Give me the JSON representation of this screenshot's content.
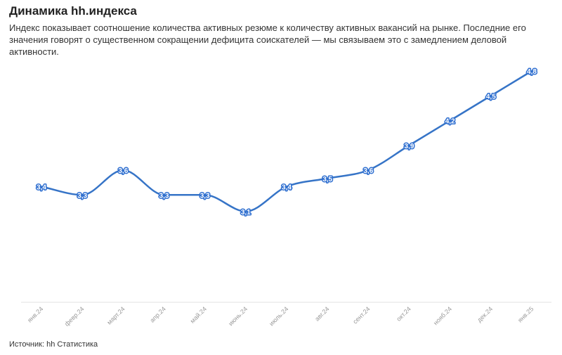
{
  "header": {
    "title": "Динамика hh.индекса",
    "subtitle": "Индекс показывает соотношение количества активных резюме к количеству активных вакансий на рынке. Последние его значения говорят о существенном сокращении дефицита соискателей — мы связываем это с замедлением деловой активности."
  },
  "footer": {
    "source": "Источник: hh Статистика"
  },
  "chart_data": {
    "type": "line",
    "categories": [
      "янв.24",
      "февр.24",
      "март.24",
      "апр.24",
      "май.24",
      "июнь.24",
      "июль.24",
      "авг.24",
      "сент.24",
      "окт.24",
      "нояб.24",
      "дек.24",
      "янв.25"
    ],
    "series": [
      {
        "values": [
          3.4,
          3.3,
          3.6,
          3.3,
          3.3,
          3.1,
          3.4,
          3.5,
          3.6,
          3.9,
          4.2,
          4.5,
          4.8
        ]
      }
    ],
    "title": "Динамика hh.индекса",
    "xlabel": "",
    "ylabel": "",
    "ylim": [
      2.0,
      4.8
    ],
    "grid": false,
    "legend": "none",
    "line_color": "#3674c7",
    "label_color": "#2f6fd0"
  }
}
